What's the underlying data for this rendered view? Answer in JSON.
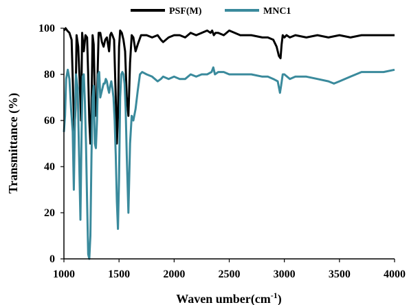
{
  "chart_data": {
    "type": "line",
    "xlabel": "Waven umber(cm",
    "xlabel_sup": "-1",
    "xlabel_end": ")",
    "ylabel": "Transmittance (%)",
    "xlim": [
      1000,
      4000
    ],
    "ylim": [
      0,
      100
    ],
    "xticks": [
      1000,
      1500,
      2000,
      2500,
      3000,
      3500,
      4000
    ],
    "yticks": [
      0,
      20,
      40,
      60,
      80,
      100
    ],
    "grid": false,
    "legend_position": "top-center",
    "series": [
      {
        "name": "PSF(M)",
        "color": "#000000",
        "x": [
          1000,
          1015,
          1030,
          1050,
          1070,
          1085,
          1095,
          1105,
          1115,
          1130,
          1145,
          1155,
          1165,
          1180,
          1195,
          1210,
          1220,
          1230,
          1240,
          1250,
          1260,
          1270,
          1285,
          1300,
          1315,
          1330,
          1345,
          1360,
          1375,
          1390,
          1400,
          1410,
          1420,
          1430,
          1440,
          1455,
          1470,
          1480,
          1490,
          1500,
          1510,
          1525,
          1540,
          1555,
          1570,
          1585,
          1600,
          1615,
          1630,
          1650,
          1670,
          1700,
          1750,
          1800,
          1850,
          1880,
          1900,
          1950,
          2000,
          2050,
          2100,
          2150,
          2200,
          2250,
          2300,
          2330,
          2345,
          2360,
          2375,
          2400,
          2450,
          2500,
          2550,
          2600,
          2700,
          2800,
          2850,
          2900,
          2930,
          2950,
          2965,
          2975,
          2985,
          3000,
          3020,
          3050,
          3100,
          3200,
          3300,
          3400,
          3500,
          3600,
          3700,
          3800,
          3900,
          4000
        ],
        "values": [
          99,
          100,
          99,
          98,
          95,
          70,
          55,
          65,
          97,
          92,
          75,
          60,
          98,
          90,
          97,
          96,
          80,
          60,
          50,
          66,
          97,
          93,
          62,
          70,
          98,
          98,
          94,
          92,
          95,
          96,
          93,
          90,
          97,
          98,
          97,
          95,
          70,
          50,
          62,
          92,
          99,
          98,
          95,
          90,
          70,
          62,
          85,
          97,
          96,
          90,
          93,
          97,
          97,
          96,
          97,
          95,
          94,
          96,
          97,
          97,
          96,
          98,
          97,
          98,
          99,
          98,
          99,
          97,
          98,
          98,
          97,
          99,
          98,
          97,
          97,
          96,
          96,
          95,
          92,
          88,
          87,
          93,
          97,
          96,
          97,
          96,
          97,
          96,
          97,
          96,
          97,
          96,
          97,
          97,
          97,
          97
        ]
      },
      {
        "name": "MNC1",
        "color": "#3a8a9c",
        "x": [
          1000,
          1010,
          1020,
          1035,
          1050,
          1065,
          1080,
          1090,
          1100,
          1110,
          1125,
          1140,
          1150,
          1160,
          1170,
          1180,
          1190,
          1200,
          1210,
          1220,
          1230,
          1240,
          1250,
          1260,
          1270,
          1280,
          1290,
          1300,
          1310,
          1320,
          1330,
          1340,
          1350,
          1360,
          1370,
          1380,
          1390,
          1400,
          1410,
          1420,
          1430,
          1440,
          1450,
          1460,
          1470,
          1480,
          1490,
          1500,
          1510,
          1520,
          1530,
          1540,
          1550,
          1560,
          1570,
          1585,
          1600,
          1615,
          1630,
          1650,
          1670,
          1690,
          1710,
          1750,
          1800,
          1850,
          1880,
          1900,
          1950,
          2000,
          2050,
          2100,
          2150,
          2200,
          2250,
          2300,
          2340,
          2355,
          2370,
          2400,
          2450,
          2500,
          2550,
          2600,
          2700,
          2800,
          2850,
          2900,
          2940,
          2960,
          2970,
          2985,
          3000,
          3050,
          3100,
          3200,
          3300,
          3400,
          3450,
          3500,
          3600,
          3700,
          3800,
          3900,
          4000
        ],
        "values": [
          55,
          62,
          78,
          82,
          78,
          65,
          55,
          30,
          60,
          80,
          74,
          40,
          17,
          55,
          79,
          80,
          68,
          50,
          25,
          2,
          0,
          10,
          45,
          70,
          75,
          50,
          48,
          60,
          80,
          81,
          70,
          72,
          74,
          76,
          76,
          78,
          77,
          74,
          72,
          75,
          77,
          74,
          70,
          60,
          45,
          25,
          13,
          35,
          70,
          80,
          81,
          80,
          76,
          65,
          45,
          20,
          50,
          62,
          60,
          65,
          73,
          80,
          81,
          80,
          79,
          77,
          78,
          79,
          78,
          79,
          78,
          78,
          80,
          79,
          80,
          80,
          81,
          83,
          80,
          81,
          81,
          80,
          80,
          80,
          80,
          79,
          79,
          78,
          77,
          72,
          75,
          80,
          80,
          78,
          79,
          79,
          78,
          77,
          76,
          77,
          79,
          81,
          81,
          81,
          82
        ]
      }
    ]
  }
}
